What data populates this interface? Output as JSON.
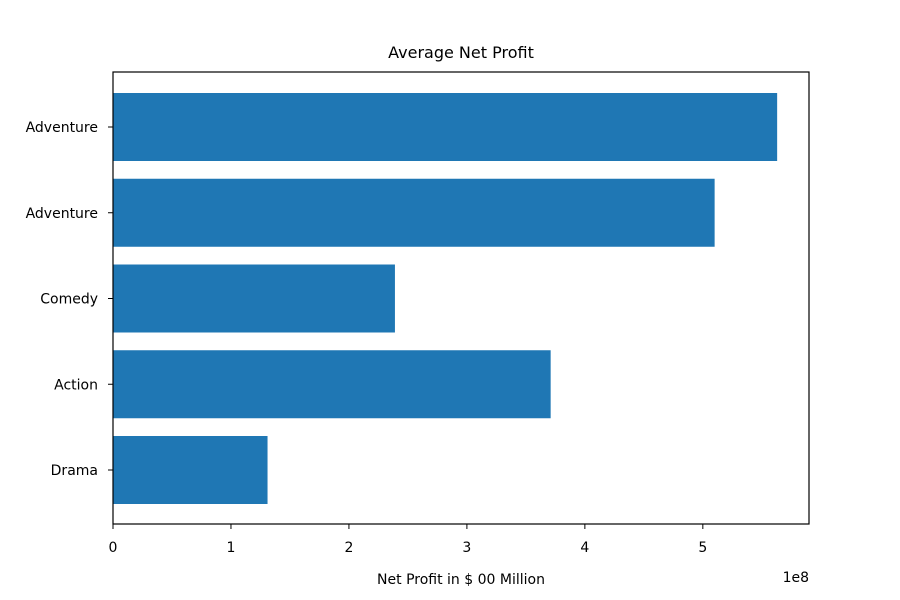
{
  "chart_data": {
    "type": "bar",
    "orientation": "horizontal",
    "title": "Average Net Profit",
    "xlabel": "Net Profit in $ 00 Million",
    "ylabel": "",
    "categories": [
      "Drama",
      "Action",
      "Comedy",
      "Adventure",
      "Adventure"
    ],
    "values": [
      131000000,
      371000000,
      239000000,
      510000000,
      563000000
    ],
    "xlim": [
      0,
      590000000
    ],
    "x_ticks": [
      0,
      1,
      2,
      3,
      4,
      5
    ],
    "x_tick_labels": [
      "0",
      "1",
      "2",
      "3",
      "4",
      "5"
    ],
    "x_scale_factor": 100000000,
    "x_offset_label": "1e8",
    "bar_color": "#1f77b4",
    "grid": false,
    "legend": "none"
  }
}
